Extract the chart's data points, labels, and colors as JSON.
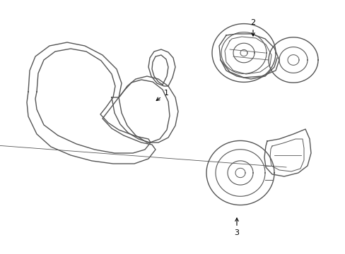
{
  "bg_color": "#ffffff",
  "line_color": "#555555",
  "line_width": 1.0,
  "label_color": "#000000",
  "figsize": [
    4.89,
    3.6
  ],
  "dpi": 100
}
